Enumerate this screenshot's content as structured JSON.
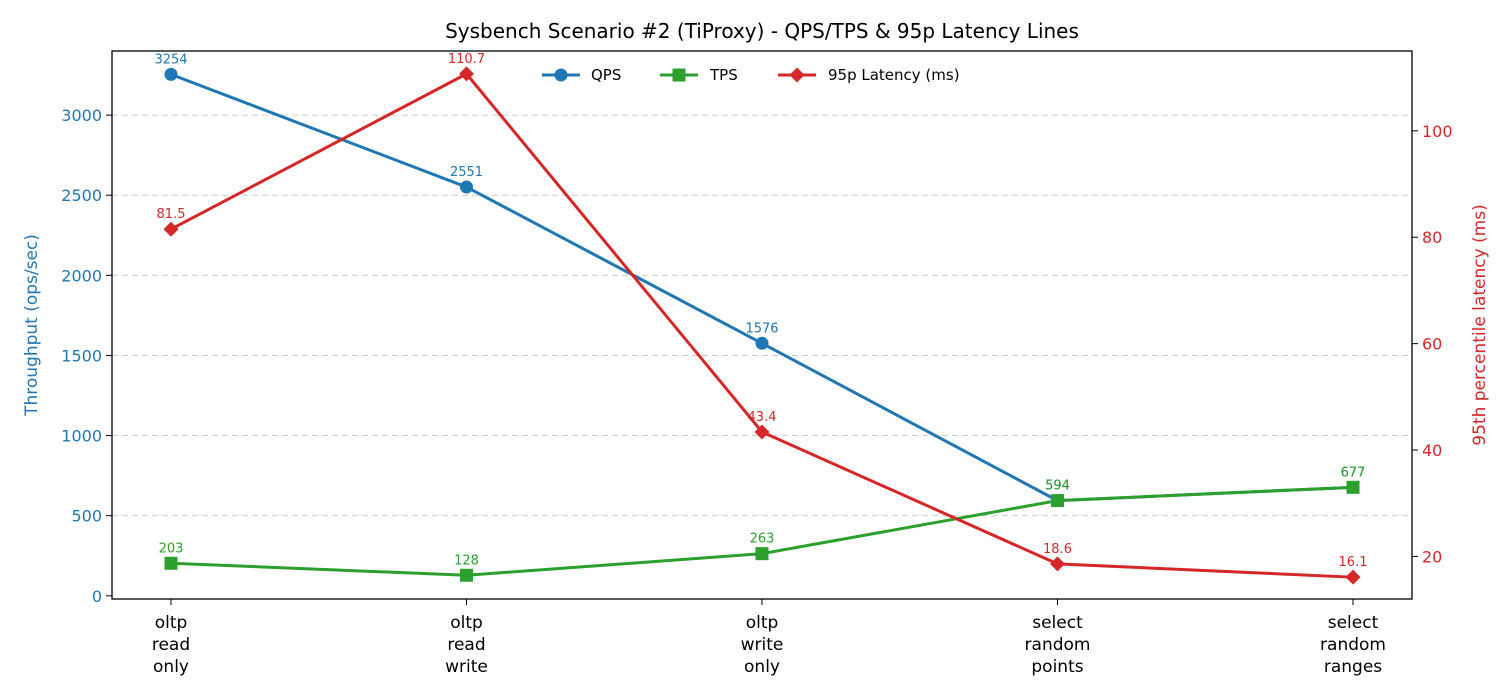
{
  "chart_data": {
    "type": "line",
    "title": "Sysbench Scenario #2 (TiProxy) - QPS/TPS & 95p Latency Lines",
    "categories": [
      [
        "oltp",
        "read",
        "only"
      ],
      [
        "oltp",
        "read",
        "write"
      ],
      [
        "oltp",
        "write",
        "only"
      ],
      [
        "select",
        "random",
        "points"
      ],
      [
        "select",
        "random",
        "ranges"
      ]
    ],
    "ylabel_left": "Throughput (ops/sec)",
    "ylabel_right": "95th percentile latency (ms)",
    "ylim_left": [
      -20,
      3400
    ],
    "ylim_right": [
      12,
      115
    ],
    "yticks_left": [
      0,
      500,
      1000,
      1500,
      2000,
      2500,
      3000
    ],
    "yticks_right": [
      20,
      40,
      60,
      80,
      100
    ],
    "grid": "horizontal dashed",
    "legend_position": "top-center",
    "series": [
      {
        "name": "QPS",
        "axis": "left",
        "color": "#1f77b4",
        "marker": "circle",
        "values": [
          3254,
          2551,
          1576,
          594,
          677
        ],
        "labels": [
          "3254",
          "2551",
          "1576",
          "594",
          "677"
        ]
      },
      {
        "name": "TPS",
        "axis": "left",
        "color": "#2ca02c",
        "marker": "square",
        "values": [
          203,
          128,
          263,
          594,
          677
        ],
        "labels": [
          "203",
          "128",
          "263",
          "594",
          "677"
        ]
      },
      {
        "name": "95p Latency (ms)",
        "axis": "right",
        "color": "#d62728",
        "marker": "diamond",
        "values": [
          81.5,
          110.7,
          43.4,
          18.6,
          16.1
        ],
        "labels": [
          "81.5",
          "110.7",
          "43.4",
          "18.6",
          "16.1"
        ]
      }
    ]
  }
}
